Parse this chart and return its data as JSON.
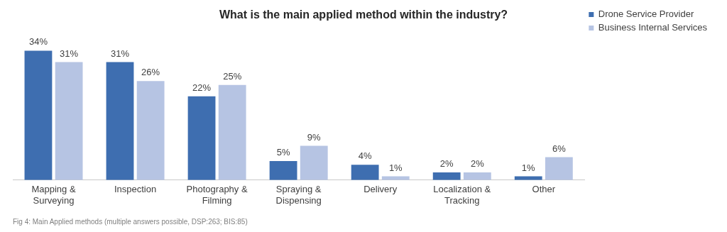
{
  "chart_data": {
    "type": "bar",
    "title": "What is the main applied method within the industry?",
    "categories": [
      "Mapping & Surveying",
      "Inspection",
      "Photography & Filming",
      "Spraying & Dispensing",
      "Delivery",
      "Localization & Tracking",
      "Other"
    ],
    "series": [
      {
        "name": "Drone Service Provider",
        "color": "#3e6eb0",
        "values": [
          34,
          31,
          22,
          5,
          4,
          2,
          1
        ],
        "value_labels": [
          "34%",
          "31%",
          "22%",
          "5%",
          "4%",
          "2%",
          "1%"
        ]
      },
      {
        "name": "Business Internal Services",
        "color": "#b6c4e3",
        "values": [
          31,
          26,
          25,
          9,
          1,
          2,
          6
        ],
        "value_labels": [
          "31%",
          "26%",
          "25%",
          "9%",
          "1%",
          "2%",
          "6%"
        ]
      }
    ],
    "legend": "top right",
    "grid": false,
    "annotations": [
      "Fig 4: Main Applied methods (multiple answers possible, DSP:263; BIS:85)"
    ]
  }
}
